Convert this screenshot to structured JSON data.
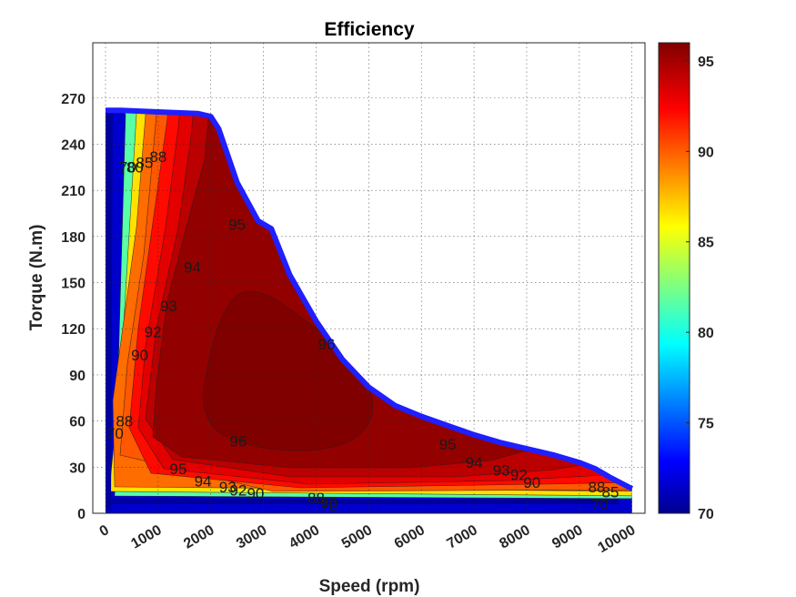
{
  "chart_data": {
    "type": "contour",
    "title": "Efficiency",
    "xlabel": "Speed (rpm)",
    "ylabel": "Torque (N.m)",
    "xlim": [
      0,
      10500
    ],
    "ylim": [
      0,
      300
    ],
    "xticks": [
      0,
      1000,
      2000,
      3000,
      4000,
      5000,
      6000,
      7000,
      8000,
      9000,
      10000
    ],
    "yticks": [
      0,
      30,
      60,
      90,
      120,
      150,
      180,
      210,
      240,
      270
    ],
    "grid": true,
    "colormap": "jet",
    "colorbar": {
      "min": 70,
      "max": 96,
      "ticks": [
        70,
        75,
        80,
        85,
        90,
        95
      ],
      "location": "right"
    },
    "contour_levels": [
      70,
      80,
      85,
      88,
      90,
      92,
      93,
      94,
      95,
      96
    ],
    "max_torque_envelope": {
      "color": "#1f1fff",
      "speed": [
        0,
        300,
        1000,
        1750,
        2000,
        2150,
        2500,
        2900,
        3150,
        3500,
        4000,
        4500,
        5000,
        5500,
        6000,
        6500,
        7000,
        7500,
        8000,
        8500,
        9000,
        9300,
        9600,
        10000
      ],
      "torque": [
        262,
        262,
        261,
        260,
        258,
        250,
        215,
        190,
        185,
        155,
        125,
        100,
        82,
        70,
        63,
        57,
        51,
        46,
        42,
        38,
        33,
        29,
        23,
        16
      ]
    },
    "contour_labels": [
      {
        "text": "70",
        "speed": 420,
        "torque": 225
      },
      {
        "text": "80",
        "speed": 560,
        "torque": 225
      },
      {
        "text": "85",
        "speed": 740,
        "torque": 228
      },
      {
        "text": "88",
        "speed": 1000,
        "torque": 232
      },
      {
        "text": "95",
        "speed": 2500,
        "torque": 188
      },
      {
        "text": "94",
        "speed": 1650,
        "torque": 160
      },
      {
        "text": "93",
        "speed": 1200,
        "torque": 135
      },
      {
        "text": "92",
        "speed": 900,
        "torque": 118
      },
      {
        "text": "90",
        "speed": 650,
        "torque": 103
      },
      {
        "text": "96",
        "speed": 4200,
        "torque": 110
      },
      {
        "text": "96",
        "speed": 2520,
        "torque": 47
      },
      {
        "text": "95",
        "speed": 1380,
        "torque": 29
      },
      {
        "text": "94",
        "speed": 1850,
        "torque": 21
      },
      {
        "text": "93",
        "speed": 2320,
        "torque": 17
      },
      {
        "text": "92",
        "speed": 2520,
        "torque": 15
      },
      {
        "text": "90",
        "speed": 2850,
        "torque": 13
      },
      {
        "text": "88",
        "speed": 4000,
        "torque": 10
      },
      {
        "text": "80",
        "speed": 4240,
        "torque": 7
      },
      {
        "text": "70",
        "speed": 4240,
        "torque": 5
      },
      {
        "text": "95",
        "speed": 6500,
        "torque": 45
      },
      {
        "text": "94",
        "speed": 7000,
        "torque": 33
      },
      {
        "text": "93",
        "speed": 7520,
        "torque": 28
      },
      {
        "text": "92",
        "speed": 7850,
        "torque": 25
      },
      {
        "text": "90",
        "speed": 8100,
        "torque": 20
      },
      {
        "text": "88",
        "speed": 9330,
        "torque": 17
      },
      {
        "text": "85",
        "speed": 9590,
        "torque": 14
      },
      {
        "text": "70",
        "speed": 9390,
        "torque": 6
      },
      {
        "text": "70",
        "speed": 180,
        "torque": 52
      },
      {
        "text": "88",
        "speed": 360,
        "torque": 60
      }
    ]
  }
}
